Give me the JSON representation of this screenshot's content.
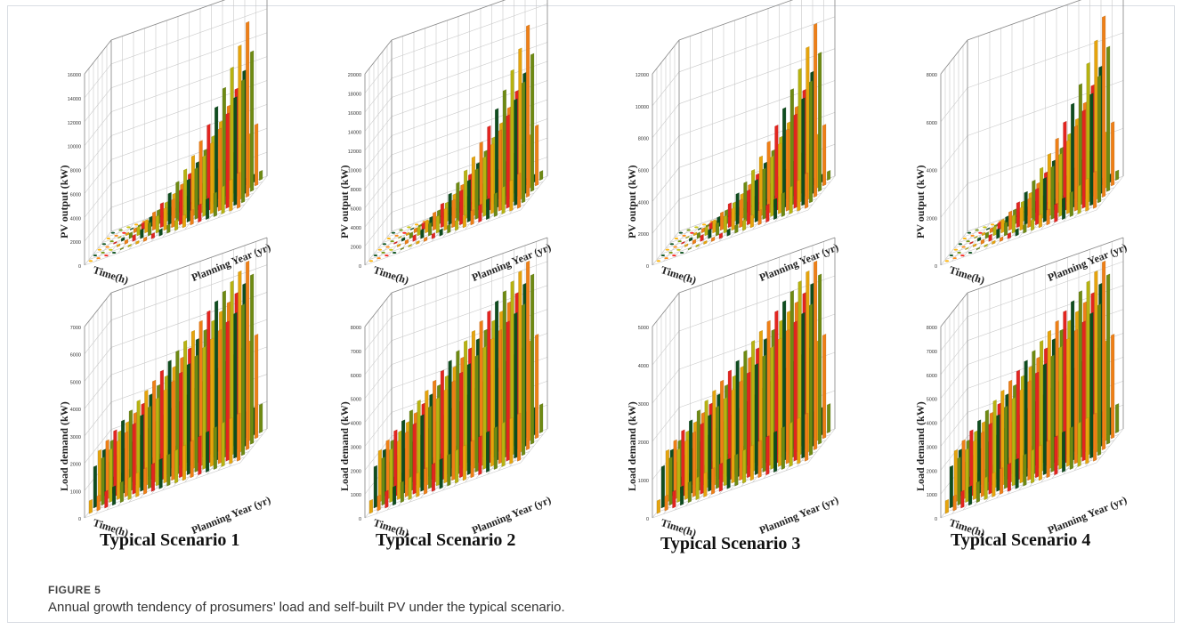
{
  "figure": {
    "number": "FIGURE 5",
    "caption": "Annual growth tendency of prosumers’ load and self-built PV under the typical scenario."
  },
  "axes": {
    "pv_ylabel": "PV output (kW)",
    "load_ylabel": "Load demand (kW)",
    "time_label": "Time(h)",
    "year_label": "Planning Year (yr)"
  },
  "scenarios": [
    "Typical Scenario 1",
    "Typical Scenario 2",
    "Typical Scenario 3",
    "Typical Scenario 4"
  ],
  "colors": [
    "#0f4d1f",
    "#6e8a12",
    "#b7b310",
    "#e6a40c",
    "#ef7f16",
    "#e3251f"
  ],
  "chart_data": [
    {
      "type": "bar",
      "panel": "pv-1",
      "ylabel": "PV output (kW)",
      "xlabel": "Time(h)",
      "zlabel": "Planning Year (yr)",
      "ylim": [
        0,
        16000
      ],
      "yticks": [
        0,
        2000,
        4000,
        6000,
        8000,
        10000,
        12000,
        14000,
        16000
      ],
      "peak": 15500
    },
    {
      "type": "bar",
      "panel": "pv-2",
      "ylabel": "PV output (kW)",
      "xlabel": "Time(h)",
      "zlabel": "Planning Year (yr)",
      "ylim": [
        0,
        20000
      ],
      "yticks": [
        0,
        2000,
        4000,
        6000,
        8000,
        10000,
        12000,
        14000,
        16000,
        18000,
        20000
      ],
      "peak": 19000
    },
    {
      "type": "bar",
      "panel": "pv-3",
      "ylabel": "PV output (kW)",
      "xlabel": "Time(h)",
      "zlabel": "Planning Year (yr)",
      "ylim": [
        0,
        12000
      ],
      "yticks": [
        0,
        2000,
        4000,
        6000,
        8000,
        10000,
        12000
      ],
      "peak": 11500
    },
    {
      "type": "bar",
      "panel": "pv-4",
      "ylabel": "PV output (kW)",
      "xlabel": "Time(h)",
      "zlabel": "Planning Year (yr)",
      "ylim": [
        0,
        8000
      ],
      "yticks": [
        0,
        2000,
        4000,
        6000,
        8000
      ],
      "peak": 8000
    },
    {
      "type": "bar",
      "panel": "load-1",
      "ylabel": "Load demand (kW)",
      "xlabel": "Time(h)",
      "zlabel": "Planning Year (yr)",
      "ylim": [
        0,
        7000
      ],
      "yticks": [
        0,
        1000,
        2000,
        3000,
        4000,
        5000,
        6000,
        7000
      ],
      "peak": 7000
    },
    {
      "type": "bar",
      "panel": "load-2",
      "ylabel": "Load demand (kW)",
      "xlabel": "Time(h)",
      "zlabel": "Planning Year (yr)",
      "ylim": [
        0,
        8000
      ],
      "yticks": [
        0,
        1000,
        2000,
        3000,
        4000,
        5000,
        6000,
        7000,
        8000
      ],
      "peak": 8000
    },
    {
      "type": "bar",
      "panel": "load-3",
      "ylabel": "Load demand (kW)",
      "xlabel": "Time(h)",
      "zlabel": "Planning Year (yr)",
      "ylim": [
        0,
        5000
      ],
      "yticks": [
        0,
        1000,
        2000,
        3000,
        4000,
        5000
      ],
      "peak": 5000
    },
    {
      "type": "bar",
      "panel": "load-4",
      "ylabel": "Load demand (kW)",
      "xlabel": "Time(h)",
      "zlabel": "Planning Year (yr)",
      "ylim": [
        0,
        8000
      ],
      "yticks": [
        0,
        1000,
        2000,
        3000,
        4000,
        5000,
        6000,
        7000,
        8000
      ],
      "peak": 8000
    }
  ]
}
